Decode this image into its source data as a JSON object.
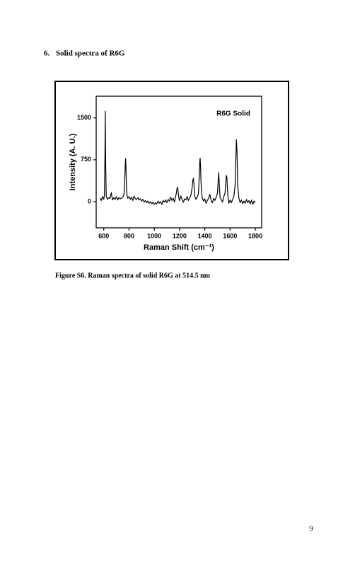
{
  "heading": {
    "number": "6.",
    "title": "Solid spectra of R6G"
  },
  "chart_data": {
    "type": "line",
    "title": "R6G Solid",
    "x_label": "Raman Shift (cm⁻¹)",
    "y_label": "Intensity (A. U.)",
    "color": "#000000",
    "xlim": [
      540,
      1850
    ],
    "ylim": [
      -470,
      1890
    ],
    "xticks": [
      600,
      800,
      1000,
      1200,
      1400,
      1600,
      1800
    ],
    "yticks": [
      0,
      750,
      1500
    ],
    "x": [
      570,
      580,
      590,
      600,
      605,
      610,
      612,
      615,
      620,
      630,
      640,
      650,
      655,
      660,
      665,
      670,
      680,
      690,
      700,
      710,
      720,
      730,
      740,
      750,
      760,
      765,
      770,
      773,
      776,
      780,
      785,
      790,
      800,
      810,
      820,
      830,
      840,
      850,
      860,
      870,
      880,
      890,
      900,
      910,
      920,
      930,
      940,
      950,
      960,
      970,
      980,
      990,
      1000,
      1010,
      1020,
      1030,
      1040,
      1050,
      1060,
      1070,
      1080,
      1090,
      1100,
      1110,
      1120,
      1130,
      1140,
      1150,
      1160,
      1170,
      1175,
      1180,
      1185,
      1190,
      1195,
      1200,
      1210,
      1220,
      1230,
      1240,
      1250,
      1260,
      1270,
      1280,
      1290,
      1300,
      1305,
      1310,
      1315,
      1320,
      1330,
      1340,
      1350,
      1355,
      1360,
      1363,
      1366,
      1370,
      1375,
      1380,
      1390,
      1400,
      1410,
      1420,
      1430,
      1440,
      1450,
      1460,
      1470,
      1480,
      1490,
      1500,
      1505,
      1510,
      1515,
      1520,
      1530,
      1540,
      1550,
      1560,
      1565,
      1570,
      1575,
      1580,
      1585,
      1590,
      1600,
      1610,
      1620,
      1630,
      1640,
      1645,
      1650,
      1655,
      1660,
      1670,
      1680,
      1690,
      1700,
      1710,
      1720,
      1730,
      1740,
      1750,
      1760,
      1770,
      1780,
      1790,
      1800
    ],
    "values": [
      60,
      20,
      90,
      40,
      120,
      900,
      1620,
      700,
      90,
      40,
      70,
      60,
      120,
      160,
      80,
      30,
      70,
      40,
      90,
      30,
      70,
      50,
      60,
      80,
      120,
      300,
      650,
      770,
      600,
      250,
      100,
      60,
      90,
      40,
      80,
      20,
      100,
      50,
      40,
      70,
      30,
      50,
      10,
      40,
      -10,
      20,
      -20,
      10,
      -30,
      0,
      -40,
      -10,
      -50,
      -20,
      -40,
      10,
      -30,
      0,
      -50,
      20,
      -10,
      30,
      -20,
      40,
      10,
      80,
      20,
      60,
      -10,
      100,
      160,
      230,
      260,
      150,
      60,
      20,
      100,
      40,
      -10,
      50,
      30,
      90,
      20,
      70,
      120,
      250,
      380,
      420,
      300,
      100,
      40,
      80,
      150,
      400,
      700,
      780,
      650,
      350,
      150,
      60,
      10,
      50,
      -30,
      20,
      60,
      130,
      20,
      -20,
      60,
      20,
      80,
      150,
      350,
      520,
      300,
      80,
      40,
      -10,
      90,
      150,
      300,
      470,
      430,
      200,
      60,
      -30,
      30,
      -20,
      40,
      90,
      300,
      700,
      1110,
      900,
      300,
      60,
      -20,
      30,
      -40,
      10,
      -30,
      40,
      -20,
      20,
      -40,
      30,
      -50,
      10,
      -20
    ]
  },
  "caption": "Figure S6. Raman spectra of solid R6G at 514.5 nm",
  "page_number": "9"
}
